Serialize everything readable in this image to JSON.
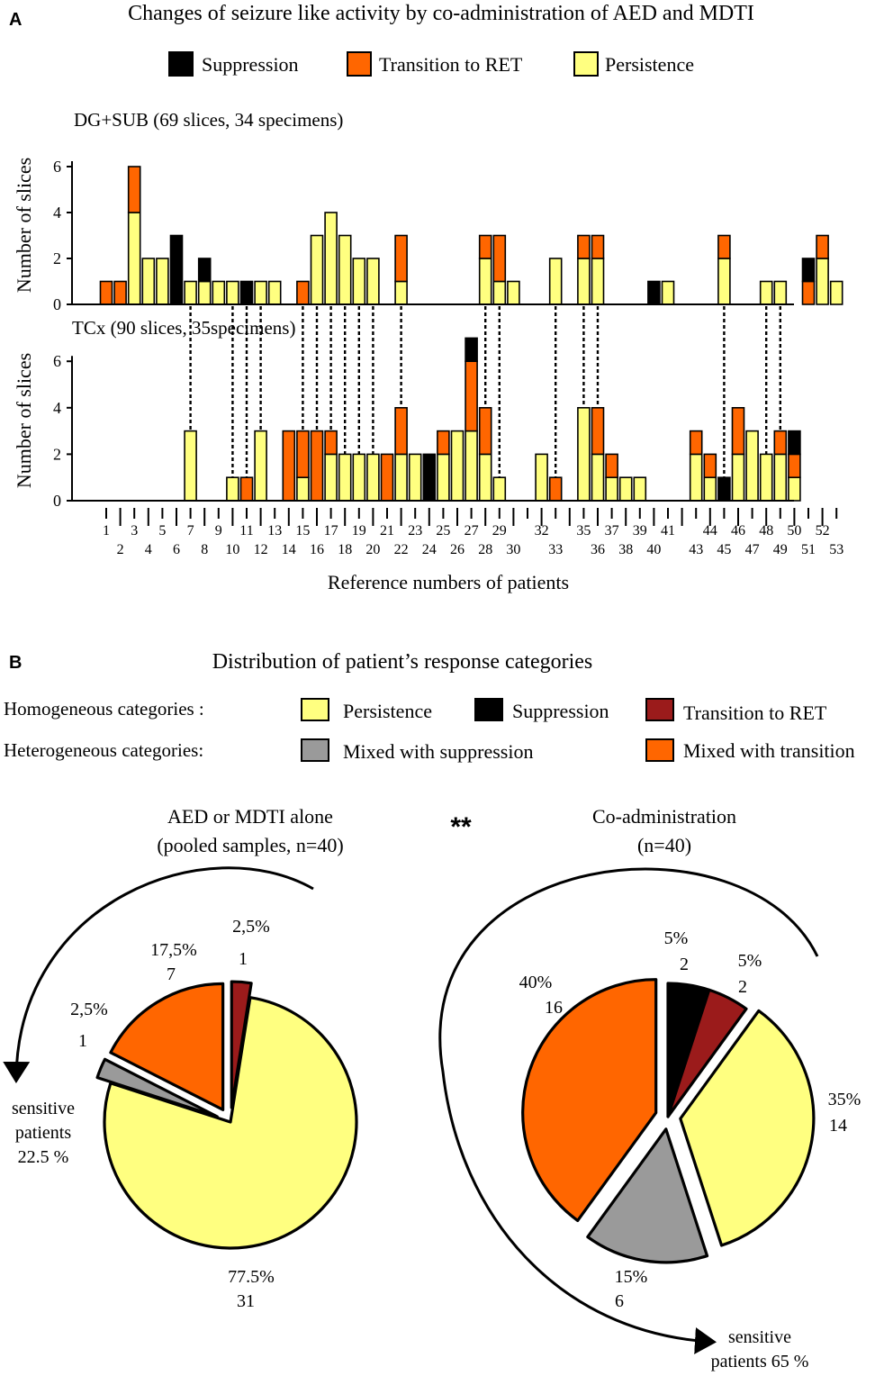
{
  "panel_a": {
    "letter": "A",
    "title": "Changes of seizure like activity by co-administration of AED and MDTI",
    "legend": [
      {
        "label": "Suppression",
        "color": "#000000"
      },
      {
        "label": "Transition to RET",
        "color": "#ff6600"
      },
      {
        "label": "Persistence",
        "color": "#ffff80"
      }
    ]
  },
  "panel_b": {
    "letter": "B",
    "title": "Distribution of patient’s response categories",
    "homogeneous_label": "Homogeneous categories :",
    "heterogeneous_label": "Heterogeneous categories:",
    "legend": [
      {
        "label": "Persistence",
        "color": "#ffff80"
      },
      {
        "label": "Suppression",
        "color": "#000000"
      },
      {
        "label": "Transition to RET",
        "color": "#9b1b1b"
      },
      {
        "label": "Mixed with suppression",
        "color": "#9a9a9a"
      },
      {
        "label": "Mixed with transition",
        "color": "#ff6600"
      }
    ],
    "significance": "**"
  },
  "chart_data": [
    {
      "type": "bar",
      "stacked": true,
      "subtitle": "DG+SUB (69 slices, 34 specimens)",
      "ylabel": "Number of slices",
      "ylim": [
        0,
        6
      ],
      "yticks": [
        "0",
        "2",
        "4",
        "6"
      ],
      "series_order": [
        "Persistence",
        "Transition to RET",
        "Suppression"
      ],
      "colors": {
        "Suppression": "#000000",
        "Transition to RET": "#ff6600",
        "Persistence": "#ffff80"
      },
      "bars": [
        {
          "patient": 1,
          "suppression": 0,
          "transition": 1,
          "persistence": 0
        },
        {
          "patient": 2,
          "suppression": 0,
          "transition": 1,
          "persistence": 0
        },
        {
          "patient": 3,
          "suppression": 0,
          "transition": 2,
          "persistence": 4
        },
        {
          "patient": 4,
          "suppression": 0,
          "transition": 0,
          "persistence": 2
        },
        {
          "patient": 5,
          "suppression": 0,
          "transition": 0,
          "persistence": 2
        },
        {
          "patient": 6,
          "suppression": 3,
          "transition": 0,
          "persistence": 0
        },
        {
          "patient": 7,
          "suppression": 0,
          "transition": 0,
          "persistence": 1
        },
        {
          "patient": 8,
          "suppression": 1,
          "transition": 0,
          "persistence": 1
        },
        {
          "patient": 9,
          "suppression": 0,
          "transition": 0,
          "persistence": 1
        },
        {
          "patient": 10,
          "suppression": 0,
          "transition": 0,
          "persistence": 1
        },
        {
          "patient": 11,
          "suppression": 1,
          "transition": 0,
          "persistence": 0
        },
        {
          "patient": 12,
          "suppression": 0,
          "transition": 0,
          "persistence": 1
        },
        {
          "patient": 13,
          "suppression": 0,
          "transition": 0,
          "persistence": 1
        },
        {
          "patient": 15,
          "suppression": 0,
          "transition": 1,
          "persistence": 0
        },
        {
          "patient": 16,
          "suppression": 0,
          "transition": 0,
          "persistence": 3
        },
        {
          "patient": 17,
          "suppression": 0,
          "transition": 0,
          "persistence": 4
        },
        {
          "patient": 18,
          "suppression": 0,
          "transition": 0,
          "persistence": 3
        },
        {
          "patient": 19,
          "suppression": 0,
          "transition": 0,
          "persistence": 2
        },
        {
          "patient": 20,
          "suppression": 0,
          "transition": 0,
          "persistence": 2
        },
        {
          "patient": 22,
          "suppression": 0,
          "transition": 2,
          "persistence": 1
        },
        {
          "patient": 28,
          "suppression": 0,
          "transition": 1,
          "persistence": 2
        },
        {
          "patient": 29,
          "suppression": 0,
          "transition": 2,
          "persistence": 1
        },
        {
          "patient": 30,
          "suppression": 0,
          "transition": 0,
          "persistence": 1
        },
        {
          "patient": 33,
          "suppression": 0,
          "transition": 0,
          "persistence": 2
        },
        {
          "patient": 35,
          "suppression": 0,
          "transition": 1,
          "persistence": 2
        },
        {
          "patient": 36,
          "suppression": 0,
          "transition": 1,
          "persistence": 2
        },
        {
          "patient": 40,
          "suppression": 1,
          "transition": 0,
          "persistence": 0
        },
        {
          "patient": 41,
          "suppression": 0,
          "transition": 0,
          "persistence": 1
        },
        {
          "patient": 45,
          "suppression": 0,
          "transition": 1,
          "persistence": 2
        },
        {
          "patient": 48,
          "suppression": 0,
          "transition": 0,
          "persistence": 1
        },
        {
          "patient": 49,
          "suppression": 0,
          "transition": 0,
          "persistence": 1
        },
        {
          "patient": 51,
          "suppression": 1,
          "transition": 1,
          "persistence": 0
        },
        {
          "patient": 52,
          "suppression": 0,
          "transition": 1,
          "persistence": 2
        },
        {
          "patient": 53,
          "suppression": 0,
          "transition": 0,
          "persistence": 1
        }
      ]
    },
    {
      "type": "bar",
      "stacked": true,
      "subtitle": "TCx (90 slices, 35specimens)",
      "ylabel": "Number of slices",
      "xlabel": "Reference numbers of patients",
      "ylim": [
        0,
        6
      ],
      "yticks": [
        "0",
        "2",
        "4",
        "6"
      ],
      "colors": {
        "Suppression": "#000000",
        "Transition to RET": "#ff6600",
        "Persistence": "#ffff80"
      },
      "xtick_top": [
        "1",
        "3",
        "5",
        "7",
        "9",
        "11",
        "13",
        "15",
        "17",
        "19",
        "21",
        "23",
        "25",
        "27",
        "29",
        "32",
        "35",
        "37",
        "39",
        "41",
        "44",
        "46",
        "48",
        "50",
        "52"
      ],
      "xtick_bottom": [
        "2",
        "4",
        "6",
        "8",
        "10",
        "12",
        "14",
        "16",
        "18",
        "20",
        "22",
        "24",
        "26",
        "28",
        "30",
        "33",
        "36",
        "38",
        "40",
        "43",
        "45",
        "47",
        "49",
        "51",
        "53"
      ],
      "bars": [
        {
          "patient": 7,
          "suppression": 0,
          "transition": 0,
          "persistence": 3
        },
        {
          "patient": 10,
          "suppression": 0,
          "transition": 0,
          "persistence": 1
        },
        {
          "patient": 11,
          "suppression": 0,
          "transition": 1,
          "persistence": 0
        },
        {
          "patient": 12,
          "suppression": 0,
          "transition": 0,
          "persistence": 3
        },
        {
          "patient": 14,
          "suppression": 0,
          "transition": 3,
          "persistence": 0
        },
        {
          "patient": 15,
          "suppression": 0,
          "transition": 2,
          "persistence": 1
        },
        {
          "patient": 16,
          "suppression": 0,
          "transition": 3,
          "persistence": 0
        },
        {
          "patient": 17,
          "suppression": 0,
          "transition": 1,
          "persistence": 2
        },
        {
          "patient": 18,
          "suppression": 0,
          "transition": 0,
          "persistence": 2
        },
        {
          "patient": 19,
          "suppression": 0,
          "transition": 0,
          "persistence": 2
        },
        {
          "patient": 20,
          "suppression": 0,
          "transition": 0,
          "persistence": 2
        },
        {
          "patient": 21,
          "suppression": 0,
          "transition": 2,
          "persistence": 0
        },
        {
          "patient": 22,
          "suppression": 0,
          "transition": 2,
          "persistence": 2
        },
        {
          "patient": 23,
          "suppression": 0,
          "transition": 0,
          "persistence": 2
        },
        {
          "patient": 24,
          "suppression": 2,
          "transition": 0,
          "persistence": 0
        },
        {
          "patient": 25,
          "suppression": 0,
          "transition": 1,
          "persistence": 2
        },
        {
          "patient": 26,
          "suppression": 0,
          "transition": 0,
          "persistence": 3
        },
        {
          "patient": 27,
          "suppression": 1,
          "transition": 3,
          "persistence": 3
        },
        {
          "patient": 28,
          "suppression": 0,
          "transition": 2,
          "persistence": 2
        },
        {
          "patient": 29,
          "suppression": 0,
          "transition": 0,
          "persistence": 1
        },
        {
          "patient": 32,
          "suppression": 0,
          "transition": 0,
          "persistence": 2
        },
        {
          "patient": 33,
          "suppression": 0,
          "transition": 1,
          "persistence": 0
        },
        {
          "patient": 35,
          "suppression": 0,
          "transition": 0,
          "persistence": 4
        },
        {
          "patient": 36,
          "suppression": 0,
          "transition": 2,
          "persistence": 2
        },
        {
          "patient": 37,
          "suppression": 0,
          "transition": 1,
          "persistence": 1
        },
        {
          "patient": 38,
          "suppression": 0,
          "transition": 0,
          "persistence": 1
        },
        {
          "patient": 39,
          "suppression": 0,
          "transition": 0,
          "persistence": 1
        },
        {
          "patient": 43,
          "suppression": 0,
          "transition": 1,
          "persistence": 2
        },
        {
          "patient": 44,
          "suppression": 0,
          "transition": 1,
          "persistence": 1
        },
        {
          "patient": 45,
          "suppression": 1,
          "transition": 0,
          "persistence": 0
        },
        {
          "patient": 46,
          "suppression": 0,
          "transition": 2,
          "persistence": 2
        },
        {
          "patient": 47,
          "suppression": 0,
          "transition": 0,
          "persistence": 3
        },
        {
          "patient": 48,
          "suppression": 0,
          "transition": 0,
          "persistence": 2
        },
        {
          "patient": 49,
          "suppression": 0,
          "transition": 1,
          "persistence": 2
        },
        {
          "patient": 50,
          "suppression": 1,
          "transition": 1,
          "persistence": 1
        }
      ],
      "shared_patients_dashed": [
        7,
        10,
        11,
        12,
        15,
        16,
        17,
        18,
        19,
        20,
        22,
        28,
        29,
        33,
        35,
        36,
        45,
        48,
        49
      ]
    },
    {
      "type": "pie",
      "title": "AED or MDTI alone",
      "subtitle": "(pooled samples, n=40)",
      "note": "sensitive patients 22.5 %",
      "note_lines": [
        "sensitive",
        "patients",
        "22.5 %"
      ],
      "slices": [
        {
          "category": "Transition to RET",
          "percent_label": "2,5%",
          "count_label": "1",
          "value": 1,
          "color": "#9b1b1b",
          "exploded": true
        },
        {
          "category": "Persistence",
          "percent_label": "77.5%",
          "count_label": "31",
          "value": 31,
          "color": "#ffff80",
          "exploded": false
        },
        {
          "category": "Mixed with suppression",
          "percent_label": "2,5%",
          "count_label": "1",
          "value": 1,
          "color": "#9a9a9a",
          "exploded": true
        },
        {
          "category": "Mixed with transition",
          "percent_label": "17,5%",
          "count_label": "7",
          "value": 7,
          "color": "#ff6600",
          "exploded": true
        }
      ]
    },
    {
      "type": "pie",
      "title": "Co-administration",
      "subtitle": "(n=40)",
      "note": "sensitive patients 65 %",
      "note_lines": [
        "sensitive",
        "patients 65 %"
      ],
      "slices": [
        {
          "category": "Suppression",
          "percent_label": "5%",
          "count_label": "2",
          "value": 2,
          "color": "#000000",
          "exploded": false
        },
        {
          "category": "Transition to RET",
          "percent_label": "5%",
          "count_label": "2",
          "value": 2,
          "color": "#9b1b1b",
          "exploded": false
        },
        {
          "category": "Persistence",
          "percent_label": "35%",
          "count_label": "14",
          "value": 14,
          "color": "#ffff80",
          "exploded": true
        },
        {
          "category": "Mixed with suppression",
          "percent_label": "15%",
          "count_label": "6",
          "value": 6,
          "color": "#9a9a9a",
          "exploded": true
        },
        {
          "category": "Mixed with transition",
          "percent_label": "40%",
          "count_label": "16",
          "value": 16,
          "color": "#ff6600",
          "exploded": true
        }
      ]
    }
  ]
}
